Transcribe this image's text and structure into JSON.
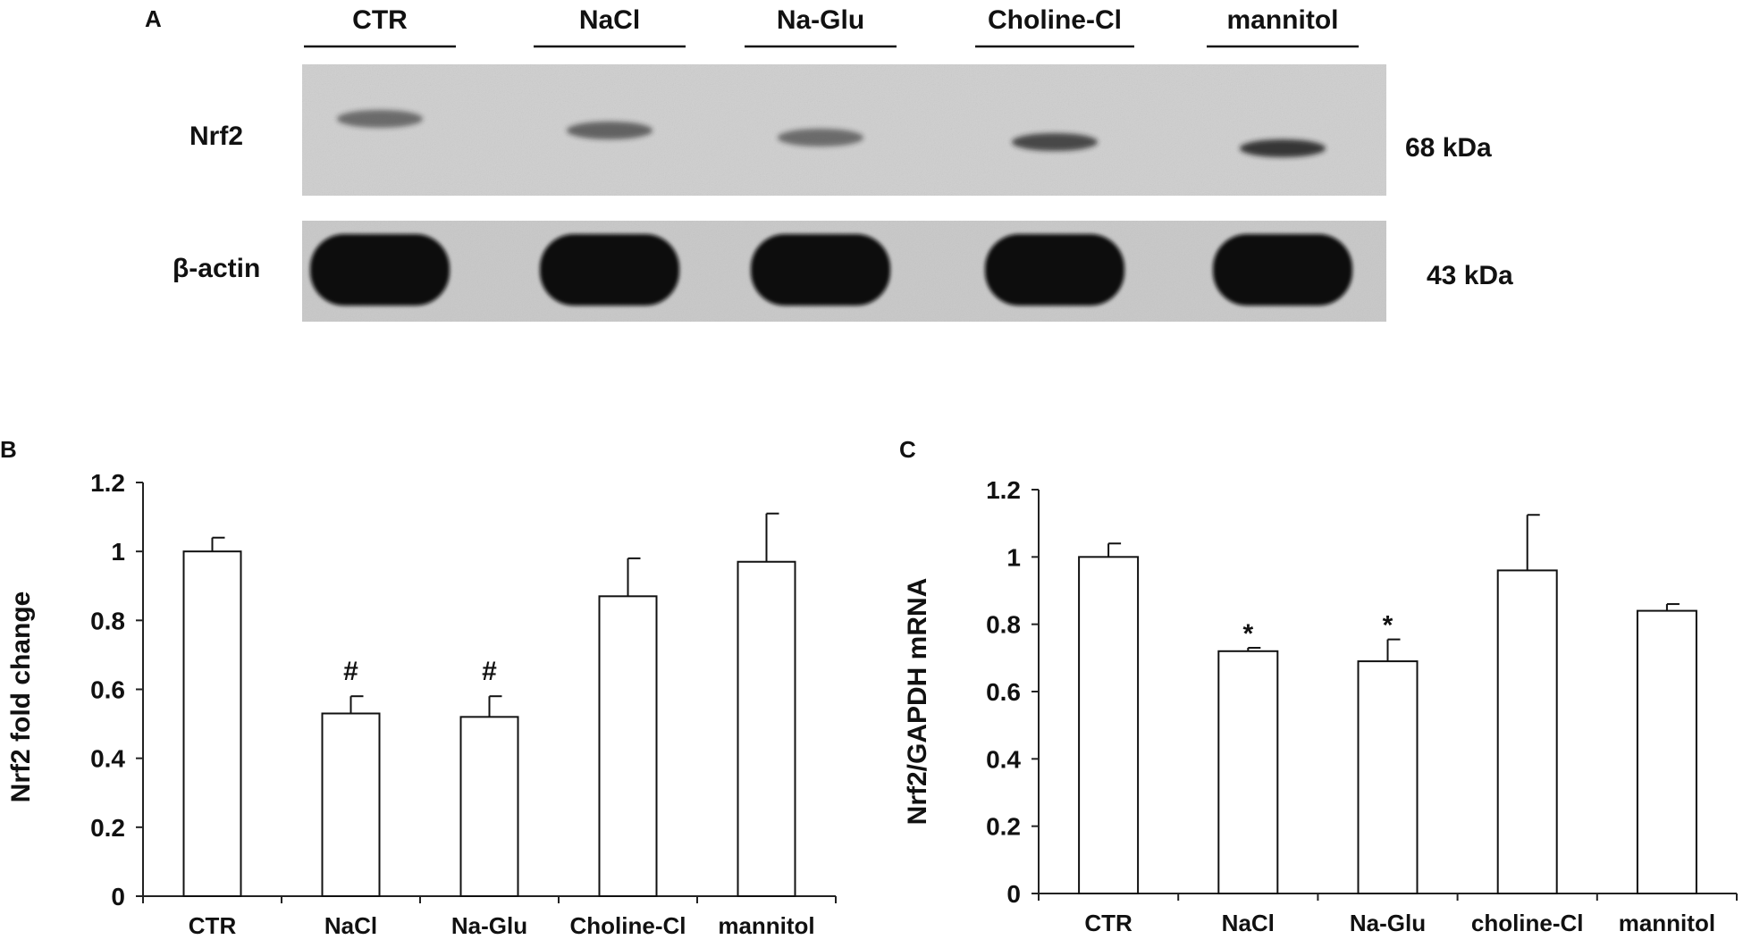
{
  "panel_a": {
    "label": "A",
    "lanes": [
      "CTR",
      "NaCl",
      "Na-Glu",
      "Choline-Cl",
      "mannitol"
    ],
    "blots": [
      {
        "protein": "Nrf2",
        "size": "68 kDa",
        "band_intensity": [
          0.55,
          0.6,
          0.55,
          0.75,
          0.85
        ]
      },
      {
        "protein": "β-actin",
        "size": "43 kDa",
        "band_intensity": [
          1,
          1,
          1,
          1,
          1
        ]
      }
    ]
  },
  "chart_data": [
    {
      "panel": "B",
      "type": "bar",
      "categories": [
        "CTR",
        "NaCl",
        "Na-Glu",
        "Choline-Cl",
        "mannitol"
      ],
      "values": [
        1.0,
        0.53,
        0.52,
        0.87,
        0.97
      ],
      "errors": [
        0.04,
        0.05,
        0.06,
        0.11,
        0.14
      ],
      "annotations": [
        "",
        "#",
        "#",
        "",
        ""
      ],
      "ylabel": "Nrf2 fold change",
      "ylim": [
        0,
        1.2
      ],
      "yticks": [
        "0",
        "0.2",
        "0.4",
        "0.6",
        "0.8",
        "1",
        "1.2"
      ],
      "bar_color": "#ffffff",
      "grid": false
    },
    {
      "panel": "C",
      "type": "bar",
      "categories": [
        "CTR",
        "NaCl",
        "Na-Glu",
        "choline-Cl",
        "mannitol"
      ],
      "values": [
        1.0,
        0.72,
        0.69,
        0.96,
        0.84
      ],
      "errors": [
        0.04,
        0.01,
        0.065,
        0.165,
        0.02
      ],
      "annotations": [
        "",
        "*",
        "*",
        "",
        ""
      ],
      "ylabel": "Nrf2/GAPDH mRNA",
      "ylim": [
        0,
        1.2
      ],
      "yticks": [
        "0",
        "0.2",
        "0.4",
        "0.6",
        "0.8",
        "1",
        "1.2"
      ],
      "bar_color": "#ffffff",
      "grid": false
    }
  ]
}
